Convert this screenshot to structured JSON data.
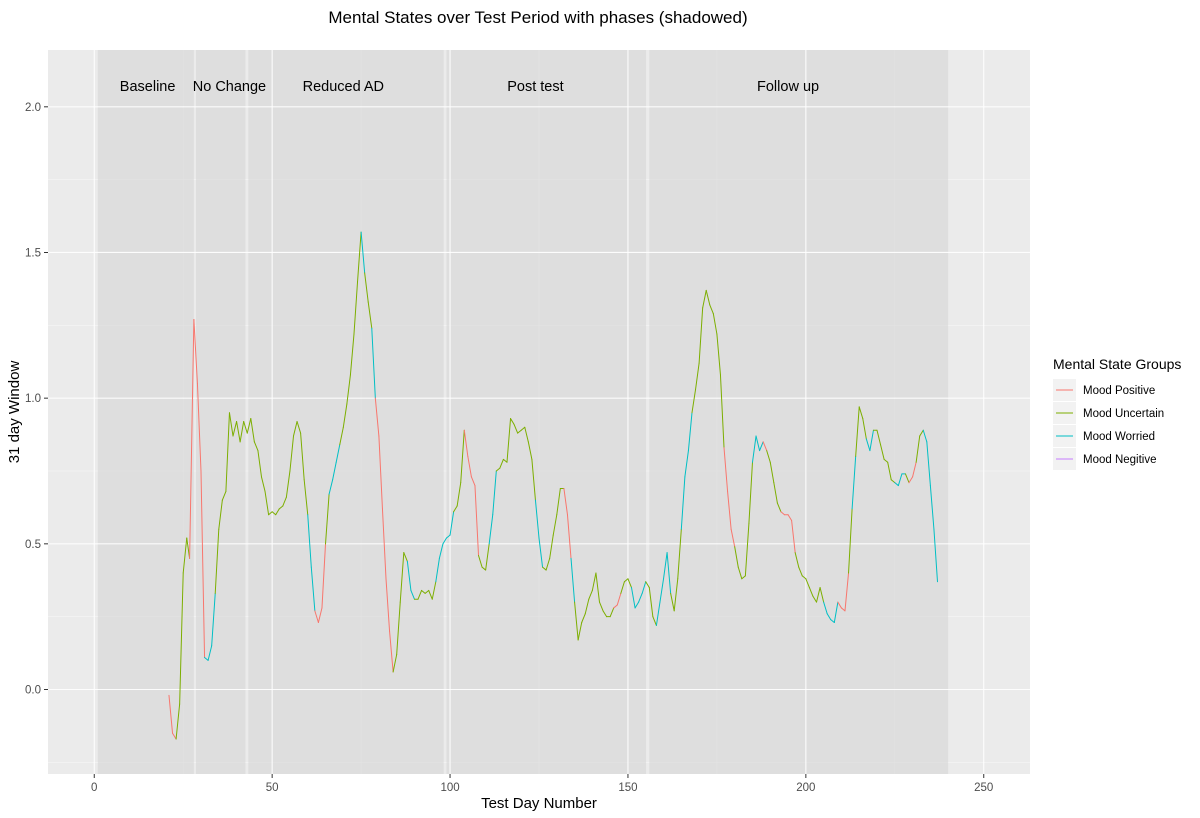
{
  "chart_data": {
    "type": "line",
    "title": "Mental States over Test Period with phases (shadowed)",
    "xlabel": "Test Day Number",
    "ylabel": "31 day Window",
    "xlim": [
      -13,
      263
    ],
    "ylim": [
      -0.29,
      2.195
    ],
    "x_ticks": [
      0,
      50,
      100,
      150,
      200,
      250
    ],
    "y_ticks": [
      0.0,
      0.5,
      1.0,
      1.5,
      2.0
    ],
    "y_tick_labels": [
      "0.0",
      "0.5",
      "1.0",
      "1.5",
      "2.0"
    ],
    "grid": true,
    "legend_position": "right",
    "legend": {
      "title": "Mental State Groups",
      "entries": [
        {
          "label": "Mood Positive",
          "color": "#F8766D"
        },
        {
          "label": "Mood Uncertain",
          "color": "#7CAE00"
        },
        {
          "label": "Mood Worried",
          "color": "#00BFC4"
        },
        {
          "label": "Mood Negitive",
          "color": "#C77CFF"
        }
      ]
    },
    "phases": [
      {
        "label": "Baseline",
        "start": 1,
        "end": 28,
        "label_x": 15
      },
      {
        "label": "No Change",
        "start": 28.6,
        "end": 42.5,
        "label_x": 38
      },
      {
        "label": "Reduced AD",
        "start": 43.3,
        "end": 98.2,
        "label_x": 70
      },
      {
        "label": "Post test",
        "start": 99,
        "end": 155.1,
        "label_x": 124
      },
      {
        "label": "Follow up",
        "start": 156,
        "end": 240,
        "label_x": 195
      }
    ],
    "series_points": [
      [
        21,
        -0.02,
        0
      ],
      [
        22,
        -0.15,
        0
      ],
      [
        23,
        -0.17,
        1
      ],
      [
        24,
        -0.05,
        1
      ],
      [
        25,
        0.4,
        1
      ],
      [
        26,
        0.52,
        1
      ],
      [
        26.8,
        0.45,
        0
      ],
      [
        28,
        1.27,
        0
      ],
      [
        29,
        1.05,
        0
      ],
      [
        30,
        0.75,
        0
      ],
      [
        31,
        0.11,
        2
      ],
      [
        32,
        0.1,
        2
      ],
      [
        33,
        0.15,
        2
      ],
      [
        34,
        0.33,
        1
      ],
      [
        35,
        0.55,
        1
      ],
      [
        36,
        0.65,
        1
      ],
      [
        37,
        0.68,
        1
      ],
      [
        38,
        0.95,
        1
      ],
      [
        39,
        0.87,
        1
      ],
      [
        40,
        0.92,
        1
      ],
      [
        41,
        0.85,
        1
      ],
      [
        42,
        0.92,
        1
      ],
      [
        43,
        0.88,
        1
      ],
      [
        44,
        0.93,
        1
      ],
      [
        45,
        0.85,
        1
      ],
      [
        46,
        0.82,
        1
      ],
      [
        47,
        0.73,
        1
      ],
      [
        48,
        0.68,
        1
      ],
      [
        49,
        0.6,
        1
      ],
      [
        50,
        0.61,
        1
      ],
      [
        51,
        0.6,
        1
      ],
      [
        52,
        0.62,
        1
      ],
      [
        53,
        0.63,
        1
      ],
      [
        54,
        0.66,
        1
      ],
      [
        55,
        0.75,
        1
      ],
      [
        56,
        0.87,
        1
      ],
      [
        57,
        0.92,
        1
      ],
      [
        58,
        0.88,
        1
      ],
      [
        59,
        0.72,
        1
      ],
      [
        60,
        0.6,
        2
      ],
      [
        61,
        0.42,
        2
      ],
      [
        62,
        0.27,
        0
      ],
      [
        63,
        0.23,
        0
      ],
      [
        64,
        0.28,
        0
      ],
      [
        65,
        0.5,
        1
      ],
      [
        66,
        0.67,
        2
      ],
      [
        67,
        0.72,
        2
      ],
      [
        68,
        0.78,
        2
      ],
      [
        69,
        0.84,
        1
      ],
      [
        70,
        0.9,
        1
      ],
      [
        71,
        0.98,
        1
      ],
      [
        72,
        1.08,
        1
      ],
      [
        73,
        1.22,
        1
      ],
      [
        74,
        1.4,
        1
      ],
      [
        75,
        1.57,
        2
      ],
      [
        76,
        1.43,
        1
      ],
      [
        77,
        1.33,
        1
      ],
      [
        78,
        1.24,
        2
      ],
      [
        79,
        1.0,
        0
      ],
      [
        80,
        0.87,
        0
      ],
      [
        81,
        0.62,
        0
      ],
      [
        82,
        0.38,
        0
      ],
      [
        83,
        0.2,
        0
      ],
      [
        84,
        0.06,
        1
      ],
      [
        85,
        0.12,
        1
      ],
      [
        86,
        0.3,
        1
      ],
      [
        87,
        0.47,
        1
      ],
      [
        88,
        0.44,
        2
      ],
      [
        89,
        0.34,
        2
      ],
      [
        90,
        0.31,
        1
      ],
      [
        91,
        0.31,
        1
      ],
      [
        92,
        0.34,
        1
      ],
      [
        93,
        0.33,
        1
      ],
      [
        94,
        0.34,
        1
      ],
      [
        95,
        0.31,
        1
      ],
      [
        96,
        0.37,
        2
      ],
      [
        97,
        0.45,
        2
      ],
      [
        98,
        0.5,
        2
      ],
      [
        99,
        0.52,
        2
      ],
      [
        100,
        0.53,
        2
      ],
      [
        101,
        0.61,
        1
      ],
      [
        102,
        0.63,
        1
      ],
      [
        103,
        0.71,
        1
      ],
      [
        104,
        0.89,
        0
      ],
      [
        105,
        0.8,
        0
      ],
      [
        106,
        0.73,
        0
      ],
      [
        107,
        0.7,
        0
      ],
      [
        108,
        0.46,
        1
      ],
      [
        109,
        0.42,
        1
      ],
      [
        110,
        0.41,
        1
      ],
      [
        111,
        0.5,
        2
      ],
      [
        112,
        0.6,
        2
      ],
      [
        113,
        0.75,
        1
      ],
      [
        114,
        0.76,
        1
      ],
      [
        115,
        0.79,
        1
      ],
      [
        116,
        0.78,
        1
      ],
      [
        117,
        0.93,
        1
      ],
      [
        118,
        0.91,
        1
      ],
      [
        119,
        0.88,
        1
      ],
      [
        120,
        0.89,
        1
      ],
      [
        121,
        0.9,
        1
      ],
      [
        122,
        0.85,
        1
      ],
      [
        123,
        0.79,
        1
      ],
      [
        124,
        0.65,
        2
      ],
      [
        125,
        0.52,
        2
      ],
      [
        126,
        0.42,
        1
      ],
      [
        127,
        0.41,
        1
      ],
      [
        128,
        0.45,
        1
      ],
      [
        129,
        0.53,
        1
      ],
      [
        130,
        0.6,
        1
      ],
      [
        131,
        0.69,
        1
      ],
      [
        132,
        0.69,
        0
      ],
      [
        133,
        0.6,
        0
      ],
      [
        134,
        0.45,
        2
      ],
      [
        135,
        0.3,
        1
      ],
      [
        136,
        0.17,
        1
      ],
      [
        137,
        0.23,
        1
      ],
      [
        138,
        0.26,
        1
      ],
      [
        139,
        0.31,
        1
      ],
      [
        140,
        0.34,
        1
      ],
      [
        141,
        0.4,
        1
      ],
      [
        142,
        0.3,
        1
      ],
      [
        143,
        0.27,
        1
      ],
      [
        144,
        0.25,
        1
      ],
      [
        145,
        0.25,
        1
      ],
      [
        146,
        0.28,
        0
      ],
      [
        147,
        0.29,
        0
      ],
      [
        148,
        0.33,
        1
      ],
      [
        149,
        0.37,
        1
      ],
      [
        150,
        0.38,
        1
      ],
      [
        151,
        0.35,
        2
      ],
      [
        152,
        0.28,
        2
      ],
      [
        153,
        0.3,
        2
      ],
      [
        154,
        0.33,
        2
      ],
      [
        155,
        0.37,
        1
      ],
      [
        156,
        0.35,
        1
      ],
      [
        157,
        0.25,
        1
      ],
      [
        158,
        0.22,
        2
      ],
      [
        159,
        0.3,
        2
      ],
      [
        160,
        0.38,
        2
      ],
      [
        161,
        0.47,
        2
      ],
      [
        162,
        0.33,
        1
      ],
      [
        163,
        0.27,
        1
      ],
      [
        164,
        0.38,
        1
      ],
      [
        165,
        0.55,
        2
      ],
      [
        166,
        0.73,
        2
      ],
      [
        167,
        0.82,
        2
      ],
      [
        168,
        0.95,
        1
      ],
      [
        169,
        1.03,
        1
      ],
      [
        170,
        1.12,
        1
      ],
      [
        171,
        1.31,
        1
      ],
      [
        172,
        1.37,
        1
      ],
      [
        173,
        1.32,
        1
      ],
      [
        174,
        1.29,
        1
      ],
      [
        175,
        1.22,
        1
      ],
      [
        176,
        1.08,
        1
      ],
      [
        177,
        0.83,
        0
      ],
      [
        178,
        0.68,
        0
      ],
      [
        179,
        0.55,
        0
      ],
      [
        180,
        0.49,
        1
      ],
      [
        181,
        0.42,
        1
      ],
      [
        182,
        0.38,
        1
      ],
      [
        183,
        0.39,
        1
      ],
      [
        184,
        0.57,
        1
      ],
      [
        185,
        0.78,
        2
      ],
      [
        186,
        0.87,
        2
      ],
      [
        187,
        0.82,
        2
      ],
      [
        188,
        0.85,
        0
      ],
      [
        189,
        0.82,
        1
      ],
      [
        190,
        0.78,
        1
      ],
      [
        191,
        0.71,
        1
      ],
      [
        192,
        0.64,
        1
      ],
      [
        193,
        0.61,
        0
      ],
      [
        194,
        0.6,
        0
      ],
      [
        195,
        0.6,
        0
      ],
      [
        196,
        0.58,
        0
      ],
      [
        197,
        0.47,
        1
      ],
      [
        198,
        0.42,
        1
      ],
      [
        199,
        0.39,
        1
      ],
      [
        200,
        0.38,
        1
      ],
      [
        201,
        0.35,
        1
      ],
      [
        202,
        0.32,
        1
      ],
      [
        203,
        0.3,
        1
      ],
      [
        204,
        0.35,
        1
      ],
      [
        205,
        0.3,
        2
      ],
      [
        206,
        0.26,
        2
      ],
      [
        207,
        0.24,
        2
      ],
      [
        208,
        0.23,
        2
      ],
      [
        209,
        0.3,
        0
      ],
      [
        210,
        0.28,
        0
      ],
      [
        211,
        0.27,
        0
      ],
      [
        212,
        0.4,
        1
      ],
      [
        213,
        0.62,
        2
      ],
      [
        214,
        0.8,
        1
      ],
      [
        215,
        0.97,
        1
      ],
      [
        216,
        0.93,
        1
      ],
      [
        217,
        0.86,
        2
      ],
      [
        218,
        0.82,
        2
      ],
      [
        219,
        0.89,
        1
      ],
      [
        220,
        0.89,
        1
      ],
      [
        221,
        0.84,
        1
      ],
      [
        222,
        0.79,
        1
      ],
      [
        223,
        0.78,
        1
      ],
      [
        224,
        0.72,
        1
      ],
      [
        225,
        0.71,
        2
      ],
      [
        226,
        0.7,
        2
      ],
      [
        227,
        0.74,
        2
      ],
      [
        228,
        0.74,
        1
      ],
      [
        229,
        0.71,
        0
      ],
      [
        230,
        0.73,
        0
      ],
      [
        231,
        0.78,
        1
      ],
      [
        232,
        0.87,
        1
      ],
      [
        233,
        0.89,
        2
      ],
      [
        234,
        0.85,
        2
      ],
      [
        235,
        0.7,
        2
      ],
      [
        236,
        0.55,
        2
      ],
      [
        237,
        0.37,
        1
      ]
    ]
  }
}
